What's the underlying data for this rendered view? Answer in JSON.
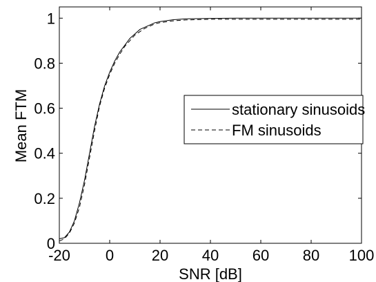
{
  "chart_data": {
    "type": "line",
    "title": "",
    "xlabel": "SNR [dB]",
    "ylabel": "Mean FTM",
    "xlim": [
      -20,
      100
    ],
    "ylim": [
      0,
      1.05
    ],
    "xticks": [
      -20,
      0,
      20,
      40,
      60,
      80,
      100
    ],
    "xtick_labels": [
      "-20",
      "0",
      "20",
      "40",
      "60",
      "80",
      "100"
    ],
    "yticks": [
      0,
      0.2,
      0.4,
      0.6,
      0.8,
      1
    ],
    "ytick_labels": [
      "0",
      "0.2",
      "0.4",
      "0.6",
      "0.8",
      "1"
    ],
    "grid": false,
    "legend_position": "center-right",
    "series": [
      {
        "name": "stationary sinusoids",
        "line_style": "solid",
        "color": "#000000",
        "x": [
          -20,
          -18,
          -16,
          -14,
          -12,
          -10,
          -8,
          -6,
          -4,
          -2,
          0,
          2,
          4,
          6,
          8,
          10,
          12,
          14,
          16,
          18,
          20,
          25,
          30,
          40,
          50,
          60,
          70,
          80,
          90,
          100
        ],
        "y": [
          0.02,
          0.025,
          0.05,
          0.1,
          0.18,
          0.28,
          0.4,
          0.52,
          0.62,
          0.7,
          0.76,
          0.81,
          0.85,
          0.88,
          0.91,
          0.93,
          0.95,
          0.96,
          0.97,
          0.98,
          0.985,
          0.993,
          0.997,
          0.999,
          1.0,
          1.0,
          1.0,
          1.0,
          1.0,
          1.0
        ]
      },
      {
        "name": "FM sinusoids",
        "line_style": "dashed",
        "color": "#000000",
        "x": [
          -20,
          -18,
          -16,
          -14,
          -12,
          -10,
          -8,
          -6,
          -4,
          -2,
          0,
          2,
          4,
          6,
          8,
          10,
          12,
          14,
          16,
          18,
          20,
          25,
          30,
          40,
          50,
          60,
          70,
          80,
          90,
          100
        ],
        "y": [
          0.01,
          0.02,
          0.045,
          0.09,
          0.16,
          0.26,
          0.38,
          0.5,
          0.61,
          0.69,
          0.75,
          0.8,
          0.84,
          0.875,
          0.9,
          0.925,
          0.94,
          0.955,
          0.965,
          0.975,
          0.98,
          0.988,
          0.992,
          0.995,
          0.995,
          0.995,
          0.995,
          0.995,
          0.995,
          0.995
        ]
      }
    ]
  }
}
